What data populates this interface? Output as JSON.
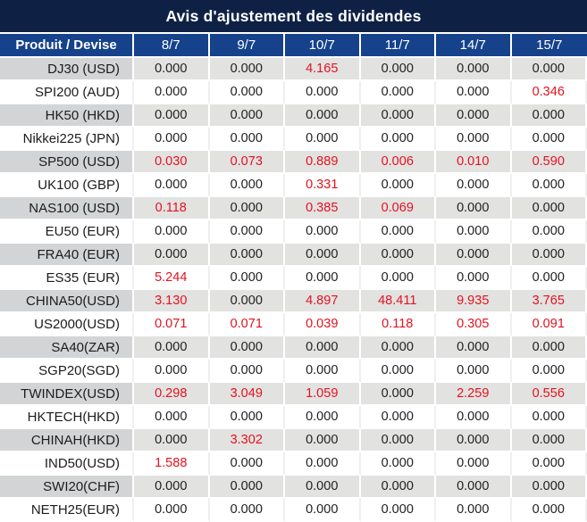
{
  "title": "Avis d'ajustement des dividendes",
  "colors": {
    "title_bg": "#0e2145",
    "header_bg": "#16428c",
    "row_gray_product_bg": "#d2d4d6",
    "row_gray_data_bg": "#e2e2e1",
    "value_red": "#e2131e",
    "value_black": "#1f1f1f"
  },
  "table": {
    "product_header": "Produit / Devise",
    "date_headers": [
      "8/7",
      "9/7",
      "10/7",
      "11/7",
      "14/7",
      "15/7"
    ],
    "zero_value": "0.000",
    "rows": [
      {
        "product": "DJ30 (USD)",
        "values": [
          "0.000",
          "0.000",
          "4.165",
          "0.000",
          "0.000",
          "0.000"
        ]
      },
      {
        "product": "SPI200 (AUD)",
        "values": [
          "0.000",
          "0.000",
          "0.000",
          "0.000",
          "0.000",
          "0.346"
        ]
      },
      {
        "product": "HK50 (HKD)",
        "values": [
          "0.000",
          "0.000",
          "0.000",
          "0.000",
          "0.000",
          "0.000"
        ]
      },
      {
        "product": "Nikkei225 (JPN)",
        "values": [
          "0.000",
          "0.000",
          "0.000",
          "0.000",
          "0.000",
          "0.000"
        ]
      },
      {
        "product": "SP500 (USD)",
        "values": [
          "0.030",
          "0.073",
          "0.889",
          "0.006",
          "0.010",
          "0.590"
        ]
      },
      {
        "product": "UK100 (GBP)",
        "values": [
          "0.000",
          "0.000",
          "0.331",
          "0.000",
          "0.000",
          "0.000"
        ]
      },
      {
        "product": "NAS100 (USD)",
        "values": [
          "0.118",
          "0.000",
          "0.385",
          "0.069",
          "0.000",
          "0.000"
        ]
      },
      {
        "product": "EU50 (EUR)",
        "values": [
          "0.000",
          "0.000",
          "0.000",
          "0.000",
          "0.000",
          "0.000"
        ]
      },
      {
        "product": "FRA40 (EUR)",
        "values": [
          "0.000",
          "0.000",
          "0.000",
          "0.000",
          "0.000",
          "0.000"
        ]
      },
      {
        "product": "ES35 (EUR)",
        "values": [
          "5.244",
          "0.000",
          "0.000",
          "0.000",
          "0.000",
          "0.000"
        ]
      },
      {
        "product": "CHINA50(USD)",
        "values": [
          "3.130",
          "0.000",
          "4.897",
          "48.411",
          "9.935",
          "3.765"
        ]
      },
      {
        "product": "US2000(USD)",
        "values": [
          "0.071",
          "0.071",
          "0.039",
          "0.118",
          "0.305",
          "0.091"
        ]
      },
      {
        "product": "SA40(ZAR)",
        "values": [
          "0.000",
          "0.000",
          "0.000",
          "0.000",
          "0.000",
          "0.000"
        ]
      },
      {
        "product": "SGP20(SGD)",
        "values": [
          "0.000",
          "0.000",
          "0.000",
          "0.000",
          "0.000",
          "0.000"
        ]
      },
      {
        "product": "TWINDEX(USD)",
        "values": [
          "0.298",
          "3.049",
          "1.059",
          "0.000",
          "2.259",
          "0.556"
        ]
      },
      {
        "product": "HKTECH(HKD)",
        "values": [
          "0.000",
          "0.000",
          "0.000",
          "0.000",
          "0.000",
          "0.000"
        ]
      },
      {
        "product": "CHINAH(HKD)",
        "values": [
          "0.000",
          "3.302",
          "0.000",
          "0.000",
          "0.000",
          "0.000"
        ]
      },
      {
        "product": "IND50(USD)",
        "values": [
          "1.588",
          "0.000",
          "0.000",
          "0.000",
          "0.000",
          "0.000"
        ]
      },
      {
        "product": "SWI20(CHF)",
        "values": [
          "0.000",
          "0.000",
          "0.000",
          "0.000",
          "0.000",
          "0.000"
        ]
      },
      {
        "product": "NETH25(EUR)",
        "values": [
          "0.000",
          "0.000",
          "0.000",
          "0.000",
          "0.000",
          "0.000"
        ]
      }
    ]
  }
}
